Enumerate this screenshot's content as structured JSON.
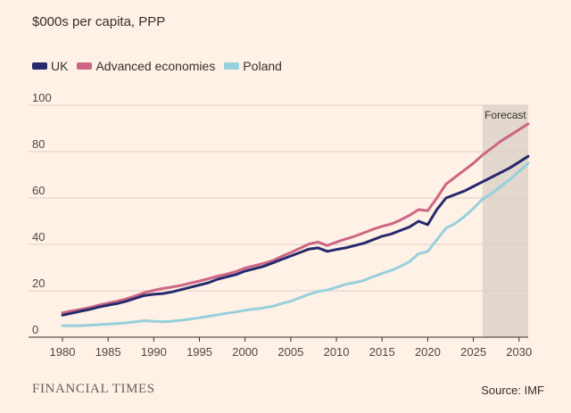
{
  "unit_label": "$000s per capita, PPP",
  "footer": {
    "brand": "FINANCIAL TIMES",
    "source": "Source: IMF"
  },
  "chart_data": {
    "type": "line",
    "xlim": [
      1980,
      2031
    ],
    "ylim": [
      0,
      100
    ],
    "x_ticks": [
      1980,
      1985,
      1990,
      1995,
      2000,
      2005,
      2010,
      2015,
      2020,
      2025,
      2030
    ],
    "y_ticks": [
      0,
      20,
      40,
      60,
      80,
      100
    ],
    "grid": true,
    "legend_position": "top-left",
    "forecast": {
      "label": "Forecast",
      "start": 2026,
      "end": 2031
    },
    "x": [
      1980,
      1981,
      1982,
      1983,
      1984,
      1985,
      1986,
      1987,
      1988,
      1989,
      1990,
      1991,
      1992,
      1993,
      1994,
      1995,
      1996,
      1997,
      1998,
      1999,
      2000,
      2001,
      2002,
      2003,
      2004,
      2005,
      2006,
      2007,
      2008,
      2009,
      2010,
      2011,
      2012,
      2013,
      2014,
      2015,
      2016,
      2017,
      2018,
      2019,
      2020,
      2021,
      2022,
      2023,
      2024,
      2025,
      2026,
      2027,
      2028,
      2029,
      2030,
      2031
    ],
    "series": [
      {
        "name": "UK",
        "color": "#262a6c",
        "values": [
          9.5,
          10.3,
          11.2,
          12.0,
          13.0,
          13.8,
          14.5,
          15.5,
          16.8,
          18.0,
          18.5,
          18.8,
          19.5,
          20.5,
          21.5,
          22.5,
          23.5,
          25.0,
          26.0,
          27.0,
          28.5,
          29.5,
          30.5,
          32.0,
          33.5,
          35.0,
          36.5,
          38.0,
          38.5,
          37.0,
          37.8,
          38.5,
          39.5,
          40.5,
          42.0,
          43.5,
          44.5,
          46.0,
          47.5,
          50.0,
          48.5,
          55.0,
          60.0,
          61.5,
          63.0,
          65.0,
          67.0,
          69.0,
          71.0,
          73.0,
          75.5,
          78.0
        ]
      },
      {
        "name": "Advanced economies",
        "color": "#cc6685",
        "values": [
          10.5,
          11.3,
          12.0,
          12.8,
          13.8,
          14.7,
          15.5,
          16.5,
          17.8,
          19.2,
          20.2,
          21.0,
          21.6,
          22.3,
          23.3,
          24.2,
          25.2,
          26.3,
          27.2,
          28.3,
          29.8,
          30.8,
          31.8,
          33.0,
          34.8,
          36.5,
          38.3,
          40.2,
          41.0,
          39.5,
          41.0,
          42.3,
          43.5,
          45.0,
          46.5,
          47.8,
          48.8,
          50.5,
          52.5,
          55.0,
          54.5,
          60.0,
          66.0,
          69.0,
          72.0,
          75.0,
          78.5,
          81.5,
          84.5,
          87.0,
          89.5,
          92.0
        ]
      },
      {
        "name": "Poland",
        "color": "#96d0dc",
        "values": [
          5.0,
          4.9,
          5.0,
          5.2,
          5.4,
          5.6,
          5.9,
          6.2,
          6.6,
          7.1,
          6.8,
          6.6,
          6.9,
          7.3,
          7.8,
          8.4,
          9.0,
          9.7,
          10.3,
          10.9,
          11.6,
          12.1,
          12.6,
          13.3,
          14.5,
          15.5,
          17.0,
          18.5,
          19.7,
          20.3,
          21.5,
          22.8,
          23.5,
          24.5,
          26.0,
          27.5,
          28.8,
          30.5,
          32.5,
          36.0,
          37.0,
          42.0,
          47.0,
          49.0,
          52.0,
          55.5,
          59.5,
          62.0,
          65.0,
          68.0,
          71.5,
          75.0
        ]
      }
    ]
  }
}
